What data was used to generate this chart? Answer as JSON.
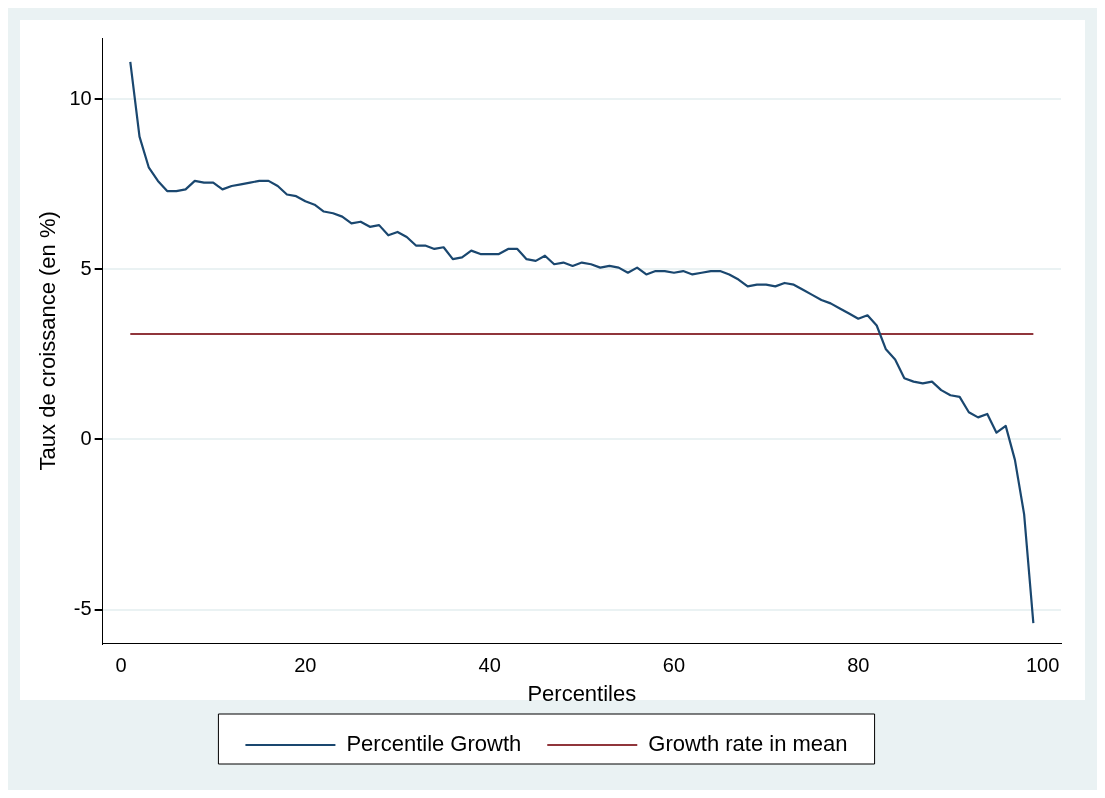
{
  "chart_data": {
    "type": "line",
    "xlabel": "Percentiles",
    "ylabel": "Taux de croissance (en %)",
    "xlim": [
      -2,
      102
    ],
    "xticks": [
      0,
      20,
      40,
      60,
      80,
      100
    ],
    "ylim": [
      -6,
      11.8
    ],
    "yticks": [
      -5,
      0,
      5,
      10
    ],
    "grid": "y",
    "legend": "bottom",
    "marker": "none",
    "line_style": "solid",
    "series": [
      {
        "name": "Percentile Growth",
        "color": "#1a476f",
        "x": [
          1,
          2,
          3,
          4,
          5,
          6,
          7,
          8,
          9,
          10,
          11,
          12,
          13,
          14,
          15,
          16,
          17,
          18,
          19,
          20,
          21,
          22,
          23,
          24,
          25,
          26,
          27,
          28,
          29,
          30,
          31,
          32,
          33,
          34,
          35,
          36,
          37,
          38,
          39,
          40,
          41,
          42,
          43,
          44,
          45,
          46,
          47,
          48,
          49,
          50,
          51,
          52,
          53,
          54,
          55,
          56,
          57,
          58,
          59,
          60,
          61,
          62,
          63,
          64,
          65,
          66,
          67,
          68,
          69,
          70,
          71,
          72,
          73,
          74,
          75,
          76,
          77,
          78,
          79,
          80,
          81,
          82,
          83,
          84,
          85,
          86,
          87,
          88,
          89,
          90,
          91,
          92,
          93,
          94,
          95,
          96,
          97,
          98,
          99
        ],
        "values": [
          11.1,
          8.9,
          8.0,
          7.6,
          7.3,
          7.3,
          7.35,
          7.6,
          7.55,
          7.55,
          7.35,
          7.45,
          7.5,
          7.55,
          7.6,
          7.6,
          7.45,
          7.2,
          7.15,
          7.0,
          6.9,
          6.7,
          6.65,
          6.55,
          6.35,
          6.4,
          6.25,
          6.3,
          6.0,
          6.1,
          5.95,
          5.7,
          5.7,
          5.6,
          5.65,
          5.3,
          5.35,
          5.55,
          5.45,
          5.45,
          5.45,
          5.6,
          5.6,
          5.3,
          5.25,
          5.4,
          5.15,
          5.2,
          5.1,
          5.2,
          5.15,
          5.05,
          5.1,
          5.05,
          4.9,
          5.05,
          4.85,
          4.95,
          4.95,
          4.9,
          4.95,
          4.85,
          4.9,
          4.95,
          4.95,
          4.85,
          4.7,
          4.5,
          4.55,
          4.55,
          4.5,
          4.6,
          4.55,
          4.4,
          4.25,
          4.1,
          4.0,
          3.85,
          3.7,
          3.55,
          3.65,
          3.35,
          2.65,
          2.35,
          1.8,
          1.7,
          1.65,
          1.7,
          1.45,
          1.3,
          1.25,
          0.8,
          0.65,
          0.75,
          0.2,
          0.4,
          -0.6,
          -2.2,
          -5.4
        ]
      },
      {
        "name": "Growth rate in mean",
        "color": "#90353b",
        "x": [
          1,
          99
        ],
        "values": [
          3.1,
          3.1
        ]
      }
    ]
  }
}
